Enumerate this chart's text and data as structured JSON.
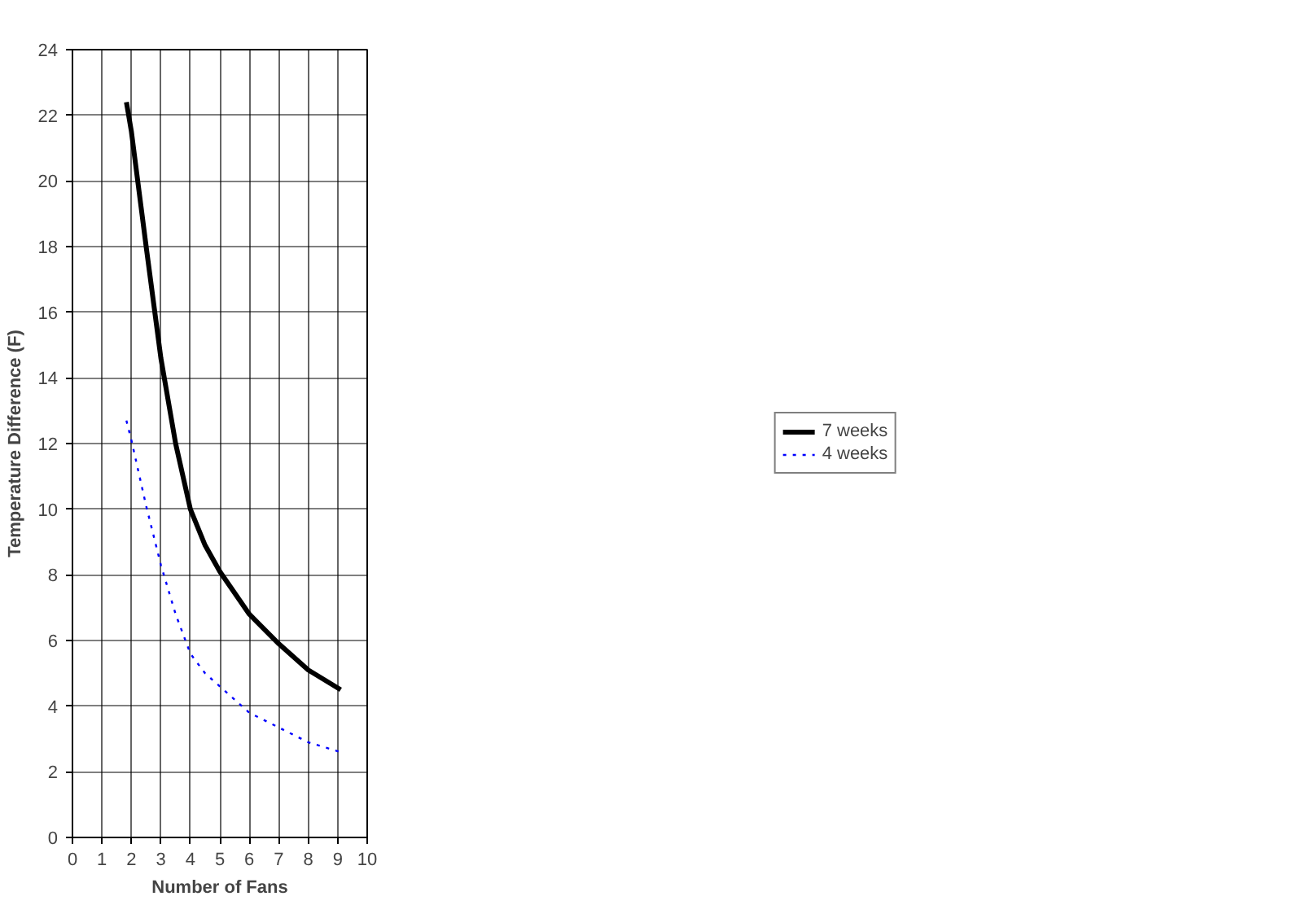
{
  "chart_data": {
    "type": "line",
    "xlabel": "Number of Fans",
    "ylabel": "Temperature Difference (F)",
    "xlim": [
      0,
      10
    ],
    "xticks": [
      0,
      1,
      2,
      3,
      4,
      5,
      6,
      7,
      8,
      9,
      10
    ],
    "ylim": [
      0,
      24
    ],
    "yticks": [
      0,
      2,
      4,
      6,
      8,
      10,
      12,
      14,
      16,
      18,
      20,
      22,
      24
    ],
    "grid": true,
    "legend": "right",
    "marker": "none",
    "series": [
      {
        "name": "7 weeks",
        "color": "#000000",
        "line_style": "solid",
        "x": [
          1.83,
          2,
          2.5,
          3,
          3.5,
          4,
          4.5,
          5,
          6,
          7,
          8,
          9.1
        ],
        "values": [
          22.4,
          21.5,
          18,
          14.6,
          12,
          10,
          8.9,
          8.1,
          6.8,
          5.9,
          5.1,
          4.5
        ]
      },
      {
        "name": "4 weeks",
        "color": "#0000ff",
        "line_style": "dotted",
        "x": [
          1.83,
          2,
          2.5,
          3,
          3.5,
          4,
          4.5,
          5,
          6,
          7,
          8,
          9.1
        ],
        "values": [
          12.7,
          12.1,
          10.1,
          8.3,
          6.8,
          5.6,
          5.0,
          4.6,
          3.8,
          3.35,
          2.9,
          2.6
        ]
      }
    ]
  }
}
